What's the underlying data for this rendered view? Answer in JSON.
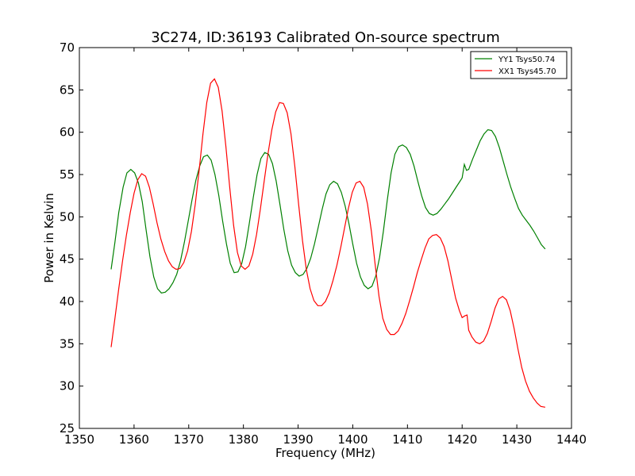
{
  "chart_data": {
    "type": "line",
    "title": "3C274, ID:36193 Calibrated On-source spectrum",
    "xlabel": "Frequency (MHz)",
    "ylabel": "Power in Kelvin",
    "xlim": [
      1350,
      1440
    ],
    "ylim": [
      25,
      70
    ],
    "xticks": [
      1350,
      1360,
      1370,
      1380,
      1390,
      1400,
      1410,
      1420,
      1430,
      1440
    ],
    "yticks": [
      25,
      30,
      35,
      40,
      45,
      50,
      55,
      60,
      65,
      70
    ],
    "grid": false,
    "legend_position": "top-right",
    "series": [
      {
        "name": "YY1 Tsys50.74",
        "color": "#008000",
        "points": [
          [
            1355.8,
            43.8
          ],
          [
            1356.5,
            47.0
          ],
          [
            1357.2,
            50.5
          ],
          [
            1358.0,
            53.5
          ],
          [
            1358.7,
            55.2
          ],
          [
            1359.4,
            55.6
          ],
          [
            1360.1,
            55.2
          ],
          [
            1360.8,
            54.0
          ],
          [
            1361.5,
            51.8
          ],
          [
            1362.2,
            48.5
          ],
          [
            1362.9,
            45.3
          ],
          [
            1363.6,
            42.9
          ],
          [
            1364.3,
            41.5
          ],
          [
            1365.0,
            41.0
          ],
          [
            1365.7,
            41.1
          ],
          [
            1366.4,
            41.5
          ],
          [
            1367.1,
            42.2
          ],
          [
            1367.8,
            43.2
          ],
          [
            1368.5,
            44.8
          ],
          [
            1369.2,
            47.0
          ],
          [
            1369.9,
            49.5
          ],
          [
            1370.6,
            52.0
          ],
          [
            1371.3,
            54.3
          ],
          [
            1372.0,
            56.0
          ],
          [
            1372.7,
            57.1
          ],
          [
            1373.4,
            57.3
          ],
          [
            1374.1,
            56.7
          ],
          [
            1374.8,
            55.0
          ],
          [
            1375.5,
            52.5
          ],
          [
            1376.2,
            49.5
          ],
          [
            1376.9,
            46.8
          ],
          [
            1377.6,
            44.5
          ],
          [
            1378.3,
            43.4
          ],
          [
            1379.0,
            43.5
          ],
          [
            1379.7,
            44.5
          ],
          [
            1380.4,
            46.5
          ],
          [
            1381.1,
            49.3
          ],
          [
            1381.8,
            52.3
          ],
          [
            1382.5,
            55.0
          ],
          [
            1383.2,
            56.9
          ],
          [
            1383.9,
            57.6
          ],
          [
            1384.6,
            57.4
          ],
          [
            1385.3,
            56.3
          ],
          [
            1386.0,
            54.2
          ],
          [
            1386.7,
            51.4
          ],
          [
            1387.4,
            48.5
          ],
          [
            1388.1,
            46.0
          ],
          [
            1388.8,
            44.3
          ],
          [
            1389.5,
            43.4
          ],
          [
            1390.2,
            43.0
          ],
          [
            1390.9,
            43.2
          ],
          [
            1391.6,
            43.9
          ],
          [
            1392.3,
            45.1
          ],
          [
            1393.0,
            46.8
          ],
          [
            1393.7,
            48.8
          ],
          [
            1394.4,
            50.9
          ],
          [
            1395.1,
            52.7
          ],
          [
            1395.8,
            53.8
          ],
          [
            1396.5,
            54.2
          ],
          [
            1397.2,
            53.9
          ],
          [
            1397.9,
            52.9
          ],
          [
            1398.6,
            51.3
          ],
          [
            1399.3,
            49.2
          ],
          [
            1400.0,
            46.8
          ],
          [
            1400.7,
            44.5
          ],
          [
            1401.4,
            42.9
          ],
          [
            1402.1,
            41.9
          ],
          [
            1402.8,
            41.5
          ],
          [
            1403.5,
            41.8
          ],
          [
            1404.2,
            43.0
          ],
          [
            1404.9,
            45.2
          ],
          [
            1405.6,
            48.3
          ],
          [
            1406.3,
            51.9
          ],
          [
            1407.0,
            55.2
          ],
          [
            1407.7,
            57.4
          ],
          [
            1408.4,
            58.3
          ],
          [
            1409.1,
            58.5
          ],
          [
            1409.8,
            58.2
          ],
          [
            1410.5,
            57.4
          ],
          [
            1411.2,
            56.0
          ],
          [
            1411.9,
            54.2
          ],
          [
            1412.6,
            52.5
          ],
          [
            1413.3,
            51.1
          ],
          [
            1414.0,
            50.4
          ],
          [
            1414.7,
            50.2
          ],
          [
            1415.4,
            50.4
          ],
          [
            1416.1,
            50.9
          ],
          [
            1416.8,
            51.5
          ],
          [
            1417.5,
            52.1
          ],
          [
            1418.2,
            52.8
          ],
          [
            1418.9,
            53.5
          ],
          [
            1419.6,
            54.2
          ],
          [
            1420.0,
            54.6
          ],
          [
            1420.4,
            56.2
          ],
          [
            1420.8,
            55.5
          ],
          [
            1421.2,
            55.6
          ],
          [
            1421.9,
            56.8
          ],
          [
            1422.6,
            57.9
          ],
          [
            1423.3,
            59.0
          ],
          [
            1424.0,
            59.8
          ],
          [
            1424.7,
            60.3
          ],
          [
            1425.4,
            60.2
          ],
          [
            1426.1,
            59.5
          ],
          [
            1426.8,
            58.2
          ],
          [
            1427.5,
            56.6
          ],
          [
            1428.2,
            55.0
          ],
          [
            1428.9,
            53.5
          ],
          [
            1429.6,
            52.2
          ],
          [
            1430.3,
            51.0
          ],
          [
            1431.0,
            50.2
          ],
          [
            1431.7,
            49.6
          ],
          [
            1432.4,
            49.0
          ],
          [
            1433.1,
            48.3
          ],
          [
            1433.8,
            47.5
          ],
          [
            1434.5,
            46.7
          ],
          [
            1435.2,
            46.2
          ]
        ]
      },
      {
        "name": "XX1 Tsys45.70",
        "color": "#ff0000",
        "points": [
          [
            1355.8,
            34.6
          ],
          [
            1356.5,
            38.0
          ],
          [
            1357.2,
            41.5
          ],
          [
            1357.9,
            44.8
          ],
          [
            1358.6,
            47.8
          ],
          [
            1359.3,
            50.5
          ],
          [
            1360.0,
            52.8
          ],
          [
            1360.7,
            54.4
          ],
          [
            1361.4,
            55.1
          ],
          [
            1362.1,
            54.8
          ],
          [
            1362.8,
            53.5
          ],
          [
            1363.5,
            51.5
          ],
          [
            1364.2,
            49.3
          ],
          [
            1364.9,
            47.4
          ],
          [
            1365.6,
            45.9
          ],
          [
            1366.3,
            44.8
          ],
          [
            1367.0,
            44.1
          ],
          [
            1367.7,
            43.8
          ],
          [
            1368.4,
            43.9
          ],
          [
            1369.1,
            44.6
          ],
          [
            1369.8,
            46.0
          ],
          [
            1370.5,
            48.3
          ],
          [
            1371.2,
            51.5
          ],
          [
            1371.9,
            55.5
          ],
          [
            1372.6,
            59.8
          ],
          [
            1373.3,
            63.5
          ],
          [
            1374.0,
            65.8
          ],
          [
            1374.7,
            66.3
          ],
          [
            1375.4,
            65.3
          ],
          [
            1376.1,
            62.5
          ],
          [
            1376.8,
            58.3
          ],
          [
            1377.5,
            53.5
          ],
          [
            1378.2,
            49.0
          ],
          [
            1378.9,
            45.8
          ],
          [
            1379.6,
            44.2
          ],
          [
            1380.3,
            43.8
          ],
          [
            1381.0,
            44.2
          ],
          [
            1381.7,
            45.6
          ],
          [
            1382.4,
            47.9
          ],
          [
            1383.1,
            50.9
          ],
          [
            1383.8,
            54.2
          ],
          [
            1384.5,
            57.5
          ],
          [
            1385.2,
            60.3
          ],
          [
            1385.9,
            62.4
          ],
          [
            1386.6,
            63.5
          ],
          [
            1387.3,
            63.4
          ],
          [
            1388.0,
            62.3
          ],
          [
            1388.7,
            59.8
          ],
          [
            1389.4,
            56.0
          ],
          [
            1390.1,
            51.5
          ],
          [
            1390.8,
            47.2
          ],
          [
            1391.5,
            43.8
          ],
          [
            1392.2,
            41.5
          ],
          [
            1392.9,
            40.1
          ],
          [
            1393.6,
            39.5
          ],
          [
            1394.3,
            39.5
          ],
          [
            1395.0,
            40.0
          ],
          [
            1395.7,
            41.0
          ],
          [
            1396.4,
            42.5
          ],
          [
            1397.1,
            44.3
          ],
          [
            1397.8,
            46.4
          ],
          [
            1398.5,
            48.7
          ],
          [
            1399.2,
            51.0
          ],
          [
            1399.9,
            52.9
          ],
          [
            1400.6,
            54.0
          ],
          [
            1401.3,
            54.2
          ],
          [
            1402.0,
            53.5
          ],
          [
            1402.7,
            51.5
          ],
          [
            1403.4,
            48.3
          ],
          [
            1404.1,
            44.3
          ],
          [
            1404.8,
            40.6
          ],
          [
            1405.5,
            38.0
          ],
          [
            1406.2,
            36.7
          ],
          [
            1406.9,
            36.1
          ],
          [
            1407.6,
            36.1
          ],
          [
            1408.3,
            36.5
          ],
          [
            1409.0,
            37.4
          ],
          [
            1409.7,
            38.6
          ],
          [
            1410.4,
            40.1
          ],
          [
            1411.1,
            41.7
          ],
          [
            1411.8,
            43.4
          ],
          [
            1412.5,
            44.9
          ],
          [
            1413.2,
            46.3
          ],
          [
            1413.9,
            47.4
          ],
          [
            1414.6,
            47.8
          ],
          [
            1415.3,
            47.9
          ],
          [
            1416.0,
            47.5
          ],
          [
            1416.7,
            46.5
          ],
          [
            1417.4,
            44.8
          ],
          [
            1418.1,
            42.6
          ],
          [
            1418.8,
            40.4
          ],
          [
            1419.5,
            38.9
          ],
          [
            1420.0,
            38.1
          ],
          [
            1420.5,
            38.3
          ],
          [
            1420.9,
            38.4
          ],
          [
            1421.2,
            36.6
          ],
          [
            1421.8,
            35.8
          ],
          [
            1422.5,
            35.2
          ],
          [
            1423.2,
            35.0
          ],
          [
            1423.9,
            35.3
          ],
          [
            1424.6,
            36.2
          ],
          [
            1425.3,
            37.6
          ],
          [
            1426.0,
            39.2
          ],
          [
            1426.7,
            40.3
          ],
          [
            1427.4,
            40.6
          ],
          [
            1428.1,
            40.2
          ],
          [
            1428.8,
            38.9
          ],
          [
            1429.5,
            36.8
          ],
          [
            1430.2,
            34.4
          ],
          [
            1430.9,
            32.2
          ],
          [
            1431.6,
            30.6
          ],
          [
            1432.3,
            29.4
          ],
          [
            1433.0,
            28.6
          ],
          [
            1433.7,
            28.0
          ],
          [
            1434.4,
            27.6
          ],
          [
            1435.2,
            27.5
          ]
        ]
      }
    ]
  }
}
